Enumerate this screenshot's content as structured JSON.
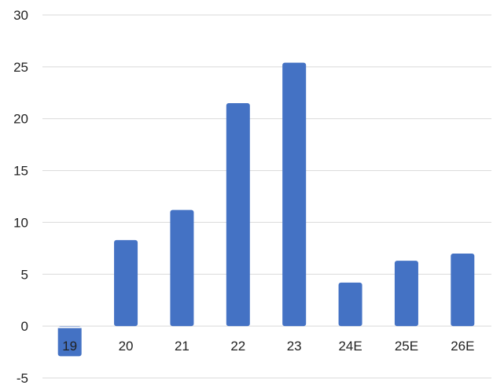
{
  "colors": {
    "bar": "#4472c4",
    "grid": "#d9d9d9",
    "zero_line": "#ffffff",
    "text": "#222222",
    "background": "#ffffff"
  },
  "chart_data": {
    "type": "bar",
    "categories": [
      "19",
      "20",
      "21",
      "22",
      "23",
      "24E",
      "25E",
      "26E"
    ],
    "values": [
      -2.9,
      8.3,
      11.2,
      21.5,
      25.4,
      4.2,
      6.3,
      7.0
    ],
    "ylim": [
      -5,
      30
    ],
    "yticks": [
      "30",
      "25",
      "20",
      "15",
      "10",
      "5",
      "0",
      "-5"
    ],
    "title": "",
    "xlabel": "",
    "ylabel": "",
    "grid": true,
    "legend": "none"
  }
}
